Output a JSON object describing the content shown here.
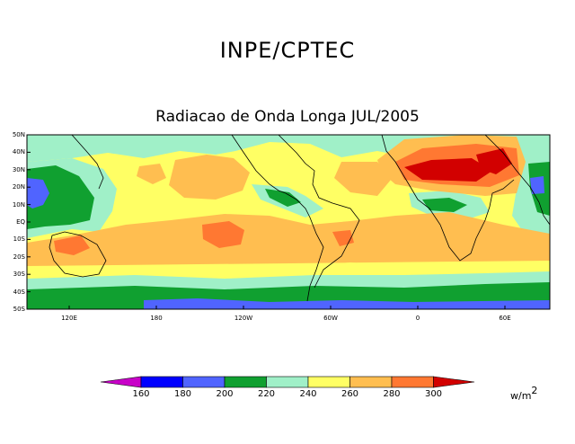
{
  "header": {
    "org": "INPE/CPTEC",
    "subtitle": "Radiacao de Onda Longa JUL/2005"
  },
  "map": {
    "latitude_labels": [
      "50N",
      "40N",
      "30N",
      "20N",
      "10N",
      "EQ",
      "10S",
      "20S",
      "30S",
      "40S",
      "50S"
    ],
    "longitude_labels": [
      "120E",
      "180",
      "120W",
      "60W",
      "0",
      "60E"
    ]
  },
  "legend": {
    "ticks": [
      "160",
      "180",
      "200",
      "220",
      "240",
      "260",
      "280",
      "300"
    ],
    "colors": [
      "#c800c8",
      "#0000ff",
      "#5064ff",
      "#10a030",
      "#a0f0c8",
      "#ffff64",
      "#ffbe50",
      "#ff7832",
      "#d20000"
    ],
    "units_base": "w/m",
    "units_exp": "2"
  }
}
